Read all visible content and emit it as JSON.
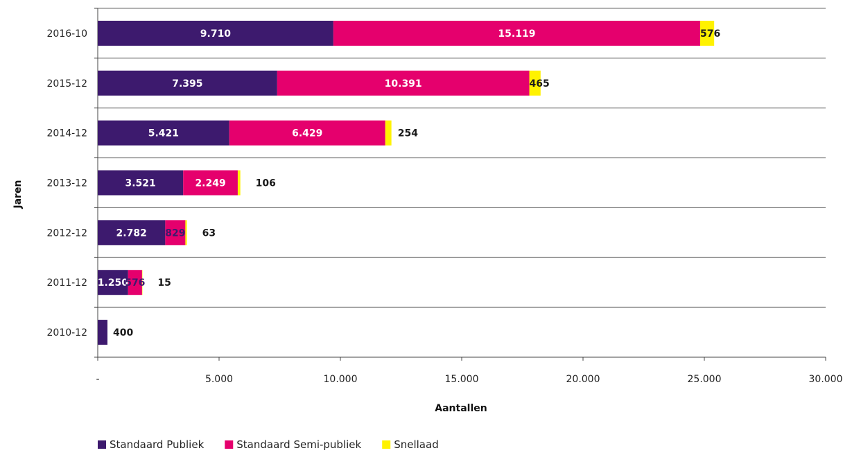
{
  "chart_data": {
    "type": "bar",
    "orientation": "horizontal",
    "stacked": true,
    "categories": [
      "2016-10",
      "2015-12",
      "2014-12",
      "2013-12",
      "2012-12",
      "2011-12",
      "2010-12"
    ],
    "series": [
      {
        "name": "Standaard Publiek",
        "color": "#3d1a6e",
        "values": [
          9710,
          7395,
          5421,
          3521,
          2782,
          1250,
          400
        ],
        "labels": [
          "9.710",
          "7.395",
          "5.421",
          "3.521",
          "2.782",
          "1.250",
          "400"
        ]
      },
      {
        "name": "Standaard Semi-publiek",
        "color": "#e5006d",
        "values": [
          15119,
          10391,
          6429,
          2249,
          829,
          576,
          0
        ],
        "labels": [
          "15.119",
          "10.391",
          "6.429",
          "2.249",
          "829",
          "576",
          ""
        ]
      },
      {
        "name": "Snellaad",
        "color": "#fff200",
        "values": [
          576,
          465,
          254,
          106,
          63,
          15,
          0
        ],
        "labels": [
          "576",
          "465",
          "254",
          "106",
          "63",
          "15",
          ""
        ]
      }
    ],
    "xlabel": "Aantallen",
    "ylabel": "Jaren",
    "xlim": [
      0,
      30000
    ],
    "xticks": [
      0,
      5000,
      10000,
      15000,
      20000,
      25000,
      30000
    ],
    "xtick_labels": [
      "-",
      "5.000",
      "10.000",
      "15.000",
      "20.000",
      "25.000",
      "30.000"
    ],
    "grid": "horizontal",
    "legend_position": "bottom-left"
  }
}
